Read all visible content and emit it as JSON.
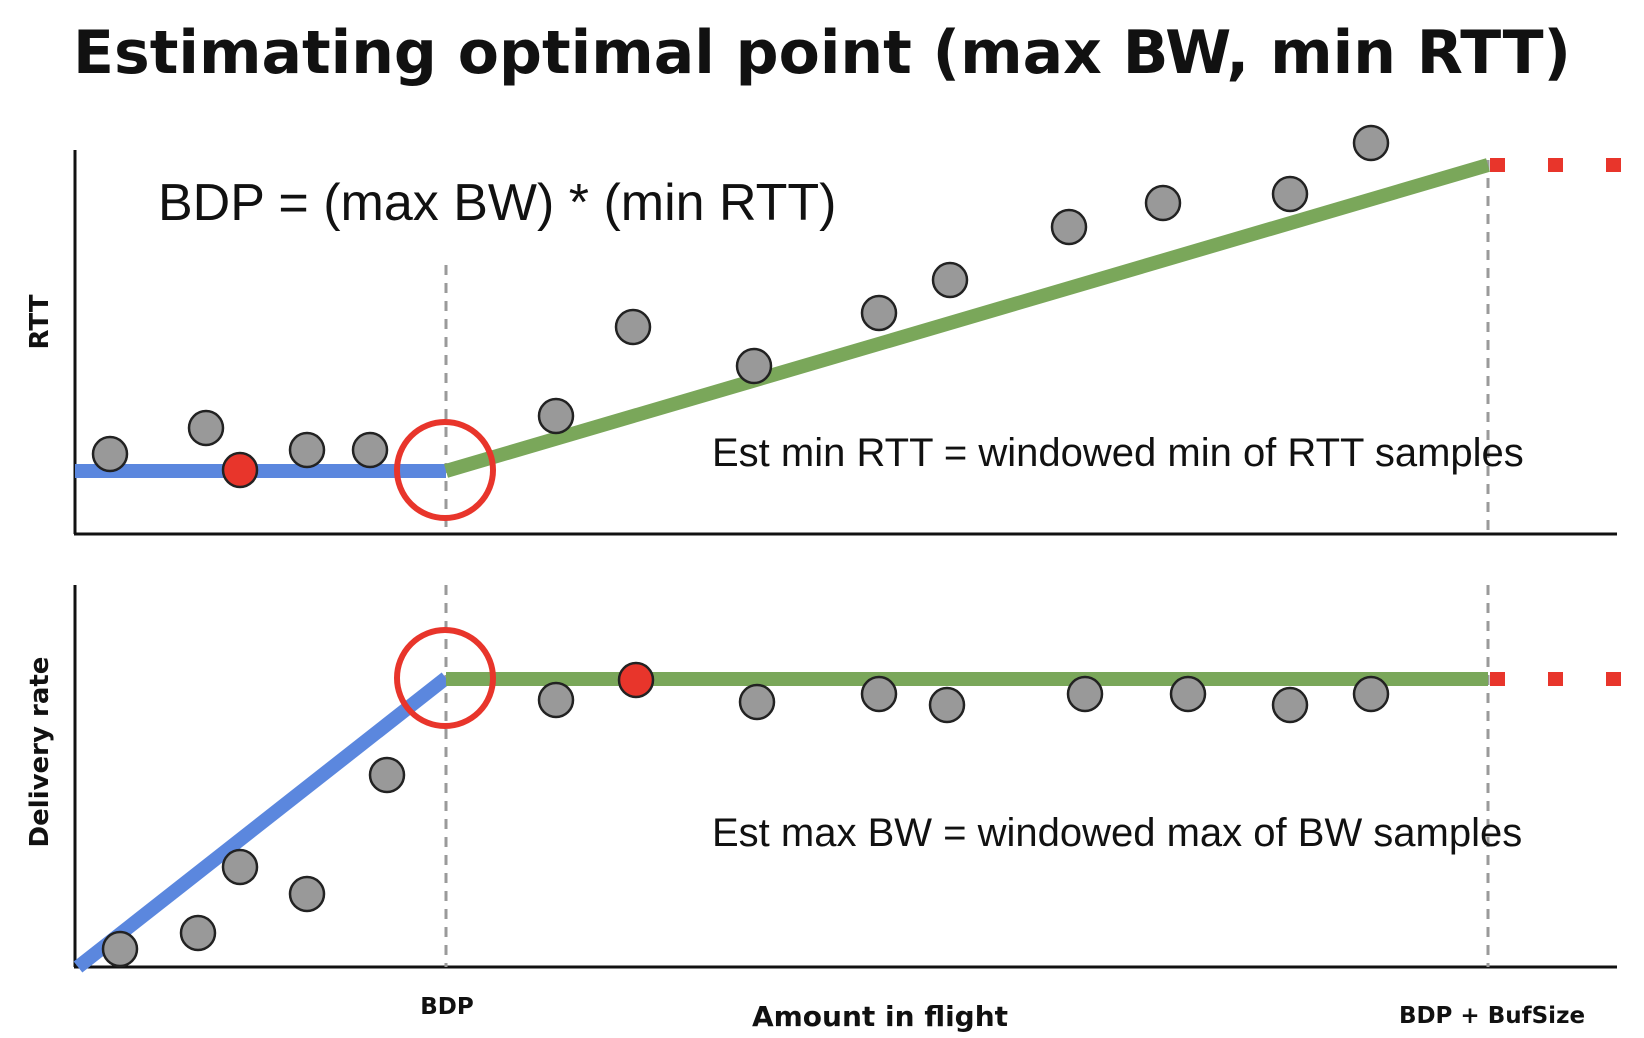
{
  "title": "Estimating optimal point (max BW, min RTT)",
  "formula": "BDP = (max BW) * (min RTT)",
  "x_axis": {
    "label": "Amount in flight",
    "ticks": [
      "BDP",
      "BDP + BufSize"
    ]
  },
  "colors": {
    "blue": "#5b87de",
    "green": "#7aa75a",
    "red": "#e8352b",
    "gray_dot": "#999999",
    "guide": "#9a9a9a",
    "axis": "#111111"
  },
  "top_panel": {
    "y_label": "RTT",
    "note": "Est min RTT = windowed min of RTT samples"
  },
  "bottom_panel": {
    "y_label": "Delivery rate",
    "note": "Est max BW = windowed max of BW samples"
  }
}
